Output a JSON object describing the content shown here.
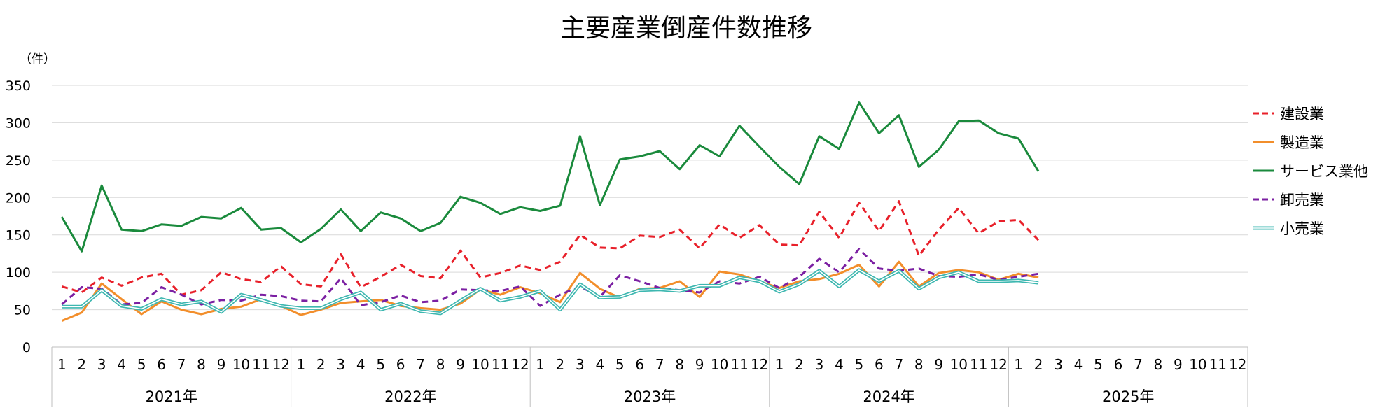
{
  "chart_data": {
    "type": "line",
    "title": "主要産業倒産件数推移",
    "ylabel": "（件）",
    "xlabel": "",
    "ylim": [
      0,
      350
    ],
    "yticks": [
      0,
      50,
      100,
      150,
      200,
      250,
      300,
      350
    ],
    "grid": true,
    "legend_position": "right",
    "month_labels": [
      "1",
      "2",
      "3",
      "4",
      "5",
      "6",
      "7",
      "8",
      "9",
      "10",
      "11",
      "12"
    ],
    "years": [
      "2021年",
      "2022年",
      "2023年",
      "2024年",
      "2025年"
    ],
    "series": [
      {
        "name": "建設業",
        "color": "#e8202a",
        "style": "dashed",
        "values": [
          81,
          73,
          93,
          82,
          93,
          98,
          70,
          76,
          100,
          91,
          87,
          108,
          84,
          81,
          124,
          80,
          94,
          110,
          95,
          92,
          129,
          93,
          99,
          109,
          103,
          114,
          150,
          133,
          132,
          149,
          147,
          157,
          132,
          164,
          146,
          163,
          137,
          136,
          181,
          146,
          193,
          155,
          195,
          122,
          157,
          186,
          152,
          168,
          170,
          143
        ]
      },
      {
        "name": "製造業",
        "color": "#f28e2b",
        "style": "solid",
        "values": [
          35,
          46,
          85,
          64,
          44,
          61,
          50,
          44,
          51,
          54,
          64,
          55,
          43,
          50,
          59,
          61,
          63,
          55,
          52,
          50,
          58,
          77,
          70,
          80,
          72,
          60,
          99,
          78,
          66,
          78,
          79,
          88,
          67,
          101,
          97,
          88,
          79,
          88,
          91,
          98,
          110,
          81,
          114,
          81,
          99,
          103,
          100,
          90,
          98,
          93
        ]
      },
      {
        "name": "サービス業他",
        "color": "#1a8a3c",
        "style": "solid",
        "values": [
          174,
          128,
          216,
          157,
          155,
          164,
          162,
          174,
          172,
          186,
          157,
          159,
          140,
          158,
          184,
          155,
          180,
          172,
          155,
          166,
          201,
          193,
          178,
          187,
          182,
          189,
          282,
          190,
          251,
          255,
          262,
          238,
          270,
          255,
          296,
          268,
          241,
          218,
          282,
          265,
          327,
          286,
          310,
          241,
          264,
          302,
          303,
          286,
          279,
          235
        ]
      },
      {
        "name": "卸売業",
        "color": "#7b1fa2",
        "style": "dashed",
        "values": [
          57,
          80,
          78,
          57,
          59,
          80,
          70,
          57,
          63,
          62,
          70,
          68,
          62,
          61,
          92,
          56,
          60,
          69,
          60,
          62,
          77,
          76,
          75,
          81,
          55,
          70,
          81,
          67,
          96,
          88,
          79,
          76,
          73,
          88,
          85,
          94,
          79,
          94,
          118,
          100,
          131,
          105,
          102,
          105,
          95,
          94,
          97,
          90,
          94,
          98
        ]
      },
      {
        "name": "小売業",
        "color": "#3db7b0",
        "style": "double",
        "values": [
          54,
          54,
          76,
          55,
          51,
          64,
          57,
          61,
          47,
          70,
          63,
          55,
          52,
          52,
          64,
          73,
          50,
          58,
          48,
          45,
          62,
          78,
          62,
          67,
          75,
          50,
          84,
          66,
          67,
          76,
          77,
          75,
          82,
          82,
          93,
          88,
          74,
          84,
          102,
          81,
          103,
          88,
          102,
          78,
          93,
          100,
          88,
          88,
          89,
          86
        ]
      }
    ]
  }
}
